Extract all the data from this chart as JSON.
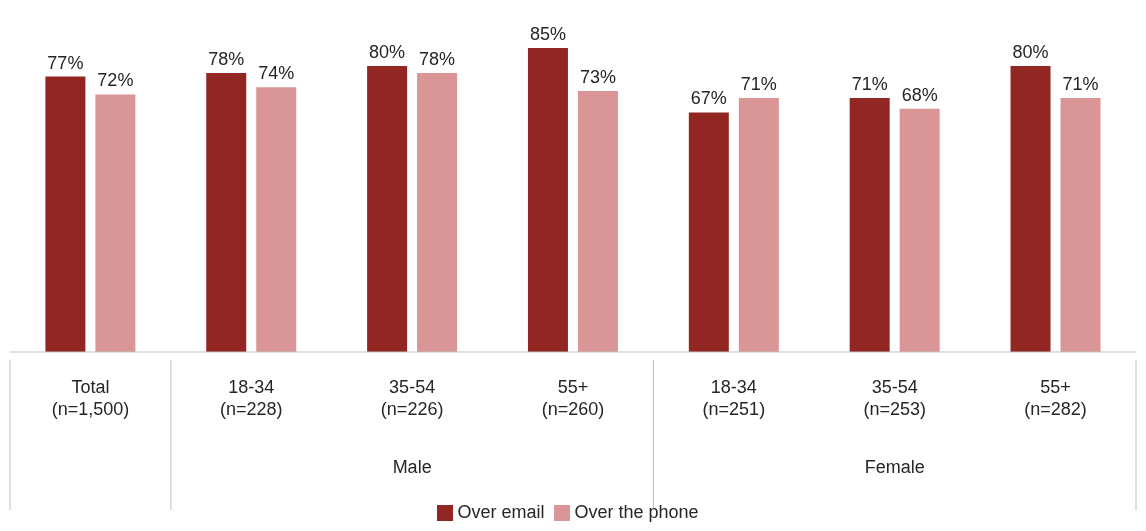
{
  "chart_data": {
    "type": "bar",
    "categories": [
      "Total (n=1,500)",
      "18-34 (n=228)",
      "35-54 (n=226)",
      "55+ (n=260)",
      "18-34 (n=251)",
      "35-54 (n=253)",
      "55+ (n=282)"
    ],
    "series": [
      {
        "name": "Over email",
        "color": "#922622",
        "values": [
          77,
          78,
          80,
          85,
          67,
          71,
          80
        ],
        "value_labels": [
          "77%",
          "78%",
          "80%",
          "85%",
          "67%",
          "71%",
          "80%"
        ]
      },
      {
        "name": "Over the phone",
        "color": "#da9696",
        "values": [
          72,
          74,
          78,
          73,
          71,
          68,
          71
        ],
        "value_labels": [
          "72%",
          "74%",
          "78%",
          "73%",
          "71%",
          "68%",
          "71%"
        ]
      }
    ],
    "annotations": [
      "Male",
      "Female"
    ],
    "legend": "bottom"
  }
}
